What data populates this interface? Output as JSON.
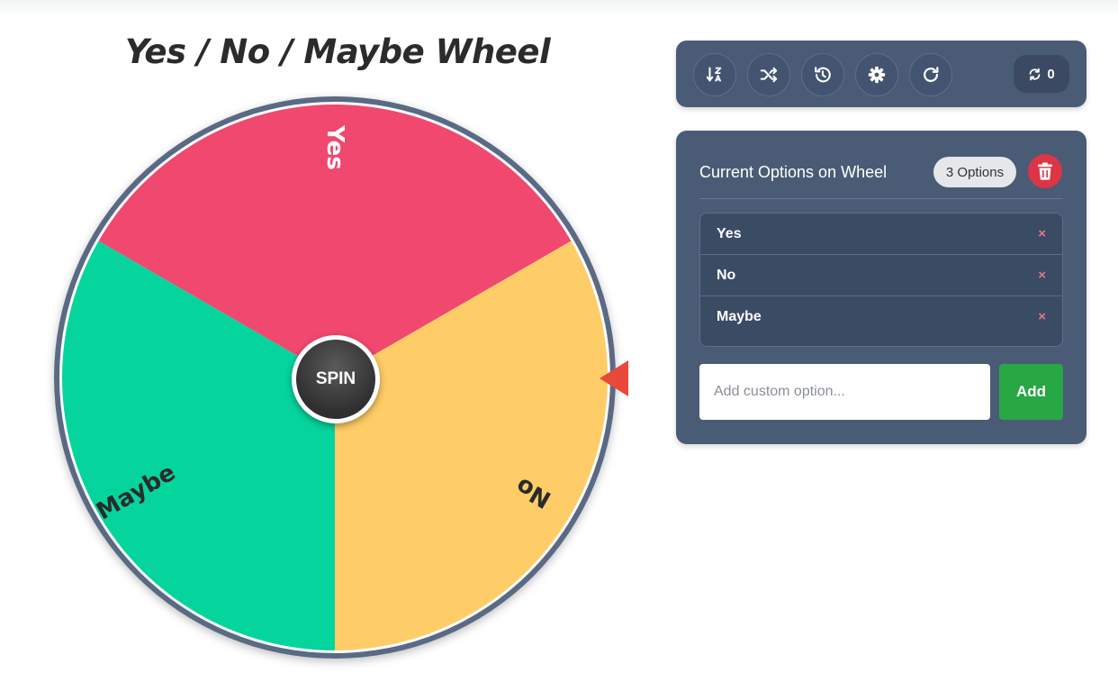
{
  "title": "Yes / No / Maybe Wheel",
  "wheel": {
    "segments": [
      {
        "label": "Yes",
        "color": "#f0486f",
        "text_color": "#ffffff"
      },
      {
        "label": "No",
        "color": "#fecd67",
        "text_color": "#2b2b2b"
      },
      {
        "label": "Maybe",
        "color": "#06d49d",
        "text_color": "#2b2b2b"
      }
    ],
    "rim_color": "#5a6b84",
    "spin_label": "SPIN",
    "pointer_color": "#e8493b"
  },
  "toolbar": {
    "buttons": [
      {
        "icon": "sort-icon"
      },
      {
        "icon": "shuffle-icon"
      },
      {
        "icon": "history-icon"
      },
      {
        "icon": "gear-icon"
      },
      {
        "icon": "redo-icon"
      }
    ],
    "spin_count": "0"
  },
  "options_panel": {
    "header": "Current Options on Wheel",
    "count_badge": "3 Options",
    "items": [
      {
        "label": "Yes"
      },
      {
        "label": "No"
      },
      {
        "label": "Maybe"
      }
    ],
    "remove_glyph": "×",
    "input_placeholder": "Add custom option...",
    "add_label": "Add"
  },
  "colors": {
    "panel_bg": "#4a5c75",
    "danger": "#dc3545",
    "success": "#28a745"
  }
}
